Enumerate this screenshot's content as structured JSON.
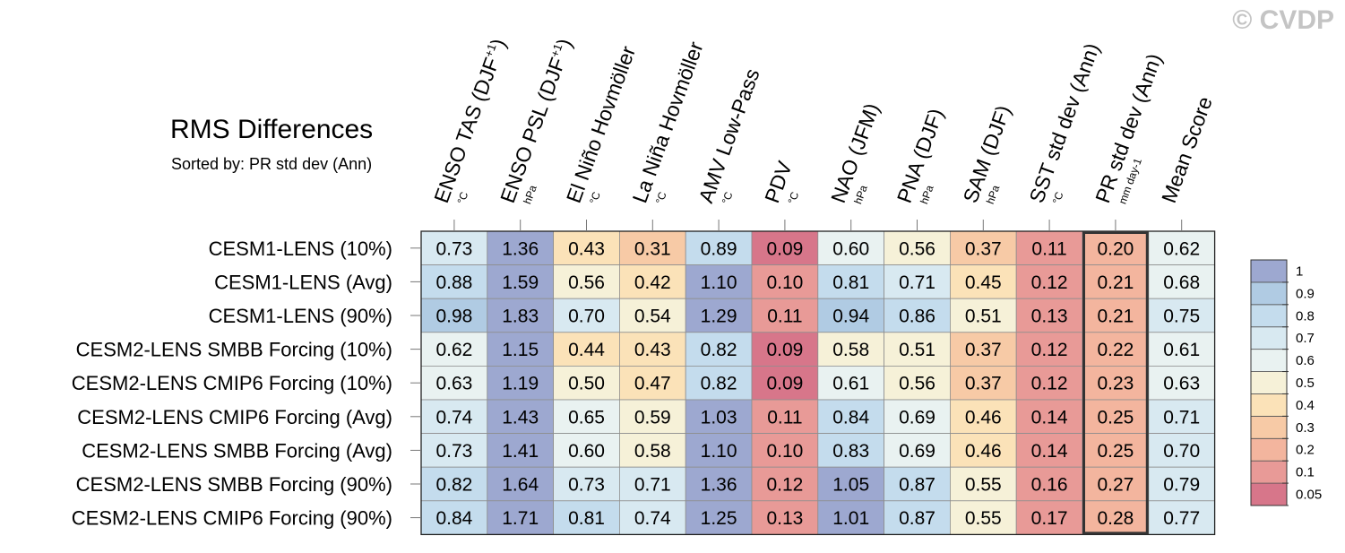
{
  "header": {
    "title": "RMS Differences",
    "subtitle": "Sorted by: PR std dev (Ann)",
    "copyright": "© CVDP"
  },
  "chart_data": {
    "type": "heatmap",
    "title": "RMS Differences",
    "subtitle": "Sorted by: PR std dev (Ann)",
    "columns": [
      {
        "label": "ENSO TAS (DJF",
        "sup": "+1",
        "close": ")",
        "unit": "°C"
      },
      {
        "label": "ENSO PSL (DJF",
        "sup": "+1",
        "close": ")",
        "unit": "hPa"
      },
      {
        "label": "El Niño Hovmöller",
        "sup": "",
        "close": "",
        "unit": "°C"
      },
      {
        "label": "La Niña Hovmöller",
        "sup": "",
        "close": "",
        "unit": "°C"
      },
      {
        "label": "AMV Low-Pass",
        "sup": "",
        "close": "",
        "unit": "°C"
      },
      {
        "label": "PDV",
        "sup": "",
        "close": "",
        "unit": "°C"
      },
      {
        "label": "NAO (JFM)",
        "sup": "",
        "close": "",
        "unit": "hPa"
      },
      {
        "label": "PNA (DJF)",
        "sup": "",
        "close": "",
        "unit": "hPa"
      },
      {
        "label": "SAM (DJF)",
        "sup": "",
        "close": "",
        "unit": "hPa"
      },
      {
        "label": "SST std dev (Ann)",
        "sup": "",
        "close": "",
        "unit": "°C"
      },
      {
        "label": "PR std dev (Ann)",
        "sup": "",
        "close": "",
        "unit": "mm day-1"
      },
      {
        "label": "Mean Score",
        "sup": "",
        "close": "",
        "unit": ""
      }
    ],
    "rows": [
      "CESM1-LENS (10%)",
      "CESM1-LENS (Avg)",
      "CESM1-LENS (90%)",
      "CESM2-LENS SMBB Forcing (10%)",
      "CESM2-LENS CMIP6 Forcing (10%)",
      "CESM2-LENS CMIP6 Forcing (Avg)",
      "CESM2-LENS SMBB Forcing (Avg)",
      "CESM2-LENS SMBB Forcing (90%)",
      "CESM2-LENS CMIP6 Forcing (90%)"
    ],
    "values": [
      [
        "0.73",
        "1.36",
        "0.43",
        "0.31",
        "0.89",
        "0.09",
        "0.60",
        "0.56",
        "0.37",
        "0.11",
        "0.20",
        "0.62"
      ],
      [
        "0.88",
        "1.59",
        "0.56",
        "0.42",
        "1.10",
        "0.10",
        "0.81",
        "0.71",
        "0.45",
        "0.12",
        "0.21",
        "0.68"
      ],
      [
        "0.98",
        "1.83",
        "0.70",
        "0.54",
        "1.29",
        "0.11",
        "0.94",
        "0.86",
        "0.51",
        "0.13",
        "0.21",
        "0.75"
      ],
      [
        "0.62",
        "1.15",
        "0.44",
        "0.43",
        "0.82",
        "0.09",
        "0.58",
        "0.51",
        "0.37",
        "0.12",
        "0.22",
        "0.61"
      ],
      [
        "0.63",
        "1.19",
        "0.50",
        "0.47",
        "0.82",
        "0.09",
        "0.61",
        "0.56",
        "0.37",
        "0.12",
        "0.23",
        "0.63"
      ],
      [
        "0.74",
        "1.43",
        "0.65",
        "0.59",
        "1.03",
        "0.11",
        "0.84",
        "0.69",
        "0.46",
        "0.14",
        "0.25",
        "0.71"
      ],
      [
        "0.73",
        "1.41",
        "0.60",
        "0.58",
        "1.10",
        "0.10",
        "0.83",
        "0.69",
        "0.46",
        "0.14",
        "0.25",
        "0.70"
      ],
      [
        "0.82",
        "1.64",
        "0.73",
        "0.71",
        "1.36",
        "0.12",
        "1.05",
        "0.87",
        "0.55",
        "0.16",
        "0.27",
        "0.79"
      ],
      [
        "0.84",
        "1.71",
        "0.81",
        "0.74",
        "1.25",
        "0.13",
        "1.01",
        "0.87",
        "0.55",
        "0.17",
        "0.28",
        "0.77"
      ]
    ],
    "highlighted_column": "PR std dev (Ann)",
    "colorbar": {
      "levels": [
        "0.05",
        "0.1",
        "0.2",
        "0.3",
        "0.4",
        "0.5",
        "0.6",
        "0.7",
        "0.8",
        "0.9",
        "1"
      ],
      "colors": [
        "#d7768a",
        "#e89a97",
        "#f3b59e",
        "#f7caa6",
        "#fbe2b8",
        "#f6f1d8",
        "#e9f2f1",
        "#d8e9f1",
        "#c4dced",
        "#b0cbe3",
        "#9da8d0"
      ]
    }
  }
}
